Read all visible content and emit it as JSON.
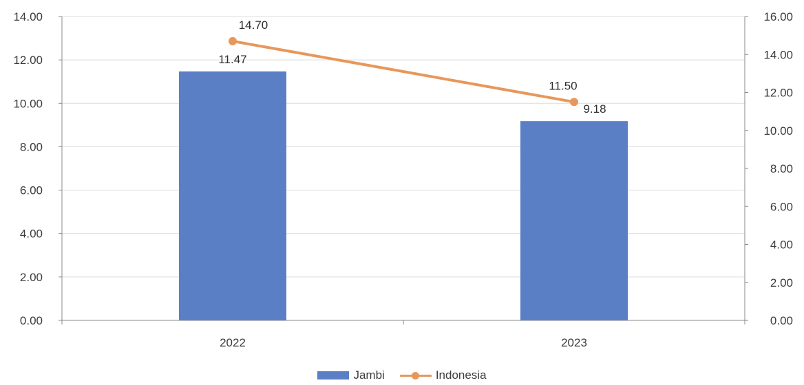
{
  "chart_data": {
    "type": "bar",
    "categories": [
      "2022",
      "2023"
    ],
    "series": [
      {
        "name": "Jambi",
        "type": "bar",
        "axis": "left",
        "values": [
          11.47,
          9.18
        ],
        "labels": [
          "11.47",
          "9.18"
        ],
        "color": "#5b7fc4"
      },
      {
        "name": "Indonesia",
        "type": "line",
        "axis": "right",
        "values": [
          14.7,
          11.5
        ],
        "labels": [
          "14.70",
          "11.50"
        ],
        "color": "#e8975a"
      }
    ],
    "ylim_left": [
      0,
      14
    ],
    "yticks_left": [
      "0.00",
      "2.00",
      "4.00",
      "6.00",
      "8.00",
      "10.00",
      "12.00",
      "14.00"
    ],
    "ylim_right": [
      0,
      16
    ],
    "yticks_right": [
      "0.00",
      "2.00",
      "4.00",
      "6.00",
      "8.00",
      "10.00",
      "12.00",
      "14.00",
      "16.00"
    ],
    "grid": true,
    "legend_position": "bottom"
  }
}
